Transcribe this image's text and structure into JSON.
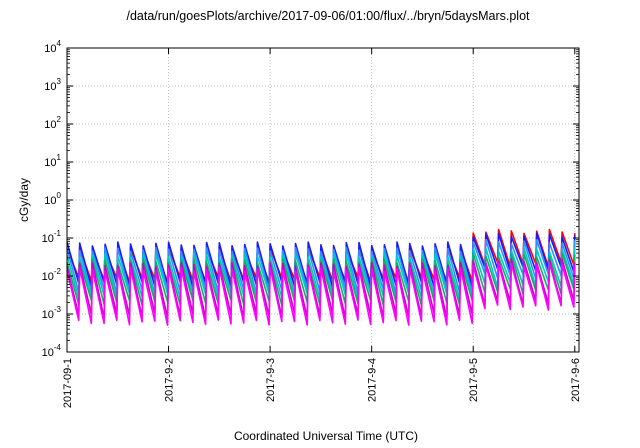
{
  "chart_data": {
    "type": "line",
    "title": "/data/run/goesPlots/archive/2017-09-06/01:00/flux/../bryn/5daysMars.plot",
    "xlabel": "Coordinated Universal Time (UTC)",
    "ylabel": "cGy/day",
    "yscale": "log",
    "ylim": [
      0.0001,
      10000
    ],
    "xlim": [
      "2017-09-01",
      "2017-09-06T01:00"
    ],
    "grid": true,
    "legend": "none",
    "x_ticks": [
      "2017-09-1",
      "2017-9-2",
      "2017-9-3",
      "2017-9-4",
      "2017-9-5",
      "2017-9-6"
    ],
    "y_ticks": [
      {
        "base": "10",
        "exp": "-4"
      },
      {
        "base": "10",
        "exp": "-3"
      },
      {
        "base": "10",
        "exp": "-2"
      },
      {
        "base": "10",
        "exp": "-1"
      },
      {
        "base": "10",
        "exp": "0"
      },
      {
        "base": "10",
        "exp": "1"
      },
      {
        "base": "10",
        "exp": "2"
      },
      {
        "base": "10",
        "exp": "3"
      },
      {
        "base": "10",
        "exp": "4"
      }
    ],
    "sawtooth_cycles_per_day": 8,
    "series": [
      {
        "color": "#ff0000",
        "peak_before": 0.05,
        "trough_before": 0.008,
        "peak_after": 0.15,
        "trough_after": 0.02
      },
      {
        "color": "#1a1aff",
        "peak_before": 0.07,
        "trough_before": 0.006,
        "peak_after": 0.12,
        "trough_after": 0.015
      },
      {
        "color": "#2f8fff",
        "peak_before": 0.05,
        "trough_before": 0.004,
        "peak_after": 0.08,
        "trough_after": 0.01
      },
      {
        "color": "#00c8c8",
        "peak_before": 0.035,
        "trough_before": 0.003,
        "peak_after": 0.05,
        "trough_after": 0.006
      },
      {
        "color": "#10b060",
        "peak_before": 0.025,
        "trough_before": 0.002,
        "peak_after": 0.035,
        "trough_after": 0.004
      },
      {
        "color": "#cc00cc",
        "peak_before": 0.02,
        "trough_before": 0.0009,
        "peak_after": 0.025,
        "trough_after": 0.002
      },
      {
        "color": "#ff00ff",
        "peak_before": 0.015,
        "trough_before": 0.0006,
        "peak_after": 0.02,
        "trough_after": 0.0015
      }
    ]
  }
}
